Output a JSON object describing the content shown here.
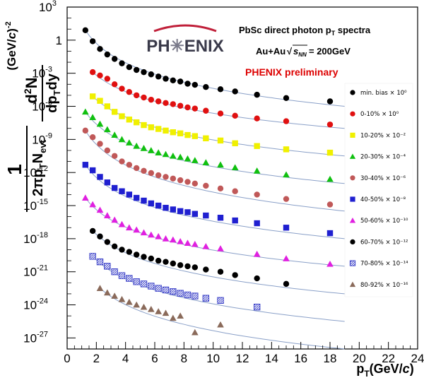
{
  "chart_data": {
    "type": "scatter",
    "title": "PbSc direct photon p_T spectra",
    "system_label": "Au+Au",
    "energy_label": "= 200GeV",
    "preliminary_label": "PHENIX preliminary",
    "logo_text": "PH✳ENIX",
    "xlabel": "p_T(GeV/c)",
    "ylabel_units": "(GeV/c)^-2",
    "xlim": [
      0,
      24
    ],
    "ylim_exponent": [
      -28,
      3
    ],
    "y_log_scale": true,
    "grid": false,
    "legend_position": "right",
    "x_ticks": [
      "0",
      "2",
      "4",
      "6",
      "8",
      "10",
      "12",
      "14",
      "16",
      "18",
      "20",
      "22",
      "24"
    ],
    "y_tick_labels": [
      {
        "exp": 3,
        "text": "10",
        "sup": "3"
      },
      {
        "exp": 0,
        "text": "1",
        "sup": ""
      },
      {
        "exp": -3,
        "text": "10",
        "sup": "-3"
      },
      {
        "exp": -6,
        "text": "10",
        "sup": "-6"
      },
      {
        "exp": -9,
        "text": "10",
        "sup": "-9"
      },
      {
        "exp": -12,
        "text": "10",
        "sup": "-12"
      },
      {
        "exp": -15,
        "text": "10",
        "sup": "-15"
      },
      {
        "exp": -18,
        "text": "10",
        "sup": "-18"
      },
      {
        "exp": -21,
        "text": "10",
        "sup": "-21"
      },
      {
        "exp": -24,
        "text": "10",
        "sup": "-24"
      },
      {
        "exp": -27,
        "text": "10",
        "sup": "-27"
      }
    ],
    "series": [
      {
        "name": "min. bias × 10⁰",
        "color": "#000000",
        "marker": "circle",
        "curve_end_log10": -6.0,
        "x": [
          1.25,
          1.75,
          2.25,
          2.75,
          3.25,
          3.75,
          4.25,
          4.75,
          5.25,
          5.75,
          6.25,
          6.75,
          7.25,
          7.75,
          8.25,
          8.75,
          9.5,
          10.5,
          11.5,
          13,
          15,
          18
        ],
        "log10y": [
          0.9,
          -0.1,
          -0.8,
          -1.3,
          -1.7,
          -2.1,
          -2.45,
          -2.7,
          -2.9,
          -3.1,
          -3.3,
          -3.5,
          -3.65,
          -3.75,
          -3.95,
          -4.05,
          -4.25,
          -4.45,
          -4.65,
          -4.95,
          -5.25,
          -5.55
        ]
      },
      {
        "name": "0-10% × 10⁰",
        "color": "#e01010",
        "marker": "circle",
        "curve_end_log10": -8.0,
        "x": [
          1.75,
          2.25,
          2.75,
          3.25,
          3.75,
          4.25,
          4.75,
          5.25,
          5.75,
          6.25,
          6.75,
          7.25,
          7.75,
          8.25,
          8.75,
          9.5,
          10.5,
          11.5,
          13,
          15,
          18
        ],
        "log10y": [
          -2.9,
          -3.2,
          -3.5,
          -4.0,
          -4.4,
          -4.7,
          -5.0,
          -5.2,
          -5.4,
          -5.55,
          -5.7,
          -5.8,
          -5.95,
          -6.1,
          -6.2,
          -6.4,
          -6.65,
          -6.85,
          -7.1,
          -7.35,
          -7.65
        ]
      },
      {
        "name": "10-20% × 10⁻²",
        "color": "#f0f000",
        "marker": "square",
        "curve_end_log10": -10.5,
        "x": [
          1.75,
          2.25,
          2.75,
          3.25,
          3.75,
          4.25,
          4.75,
          5.25,
          5.75,
          6.25,
          6.75,
          7.25,
          7.75,
          8.25,
          8.75,
          9.5,
          10.5,
          11.5,
          13,
          15,
          18
        ],
        "log10y": [
          -5.1,
          -5.5,
          -6.0,
          -6.5,
          -6.9,
          -7.2,
          -7.45,
          -7.7,
          -7.9,
          -8.05,
          -8.2,
          -8.35,
          -8.45,
          -8.6,
          -8.7,
          -8.9,
          -9.1,
          -9.35,
          -9.6,
          -9.9,
          -10.2
        ]
      },
      {
        "name": "20-30% × 10⁻⁴",
        "color": "#10c010",
        "marker": "triangle",
        "curve_end_log10": -13.0,
        "x": [
          1.25,
          1.75,
          2.25,
          2.75,
          3.25,
          3.75,
          4.25,
          4.75,
          5.25,
          5.75,
          6.25,
          6.75,
          7.25,
          7.75,
          8.25,
          8.75,
          9.5,
          10.5,
          11.5,
          13,
          15,
          18
        ],
        "log10y": [
          -6.5,
          -7.0,
          -7.6,
          -8.1,
          -8.6,
          -9.0,
          -9.3,
          -9.6,
          -9.8,
          -10.0,
          -10.2,
          -10.35,
          -10.5,
          -10.6,
          -10.75,
          -10.9,
          -11.1,
          -11.3,
          -11.55,
          -11.85,
          -12.2,
          -12.6
        ]
      },
      {
        "name": "30-40% × 10⁻⁶",
        "color": "#c05858",
        "marker": "circle",
        "curve_end_log10": -15.5,
        "x": [
          1.25,
          1.75,
          2.25,
          2.75,
          3.25,
          3.75,
          4.25,
          4.75,
          5.25,
          5.75,
          6.25,
          6.75,
          7.25,
          7.75,
          8.25,
          8.75,
          9.5,
          10.5,
          11.5,
          13,
          15,
          18
        ],
        "log10y": [
          -8.2,
          -8.8,
          -9.4,
          -10.0,
          -10.5,
          -11.0,
          -11.3,
          -11.6,
          -11.85,
          -12.05,
          -12.25,
          -12.4,
          -12.55,
          -12.7,
          -12.85,
          -13.0,
          -13.2,
          -13.45,
          -13.7,
          -14.0,
          -14.4,
          -14.9
        ]
      },
      {
        "name": "40-50% × 10⁻⁸",
        "color": "#1f1fd0",
        "marker": "square",
        "curve_end_log10": -18.0,
        "x": [
          1.25,
          1.75,
          2.25,
          2.75,
          3.25,
          3.75,
          4.25,
          4.75,
          5.25,
          5.75,
          6.25,
          6.75,
          7.25,
          7.75,
          8.25,
          8.75,
          9.5,
          10.5,
          11.5,
          13,
          15,
          18
        ],
        "log10y": [
          -11.3,
          -11.8,
          -12.4,
          -12.9,
          -13.4,
          -13.7,
          -14.0,
          -14.3,
          -14.55,
          -14.8,
          -15.0,
          -15.2,
          -15.35,
          -15.5,
          -15.6,
          -15.75,
          -15.9,
          -16.1,
          -16.35,
          -16.6,
          -17.0,
          -17.5
        ]
      },
      {
        "name": "50-60% × 10⁻¹⁰",
        "color": "#e020e0",
        "marker": "triangle",
        "curve_end_log10": -20.5,
        "x": [
          1.25,
          1.75,
          2.25,
          2.75,
          3.25,
          3.75,
          4.25,
          4.75,
          5.25,
          5.75,
          6.25,
          6.75,
          7.25,
          7.75,
          8.25,
          8.75,
          9.5,
          10.5,
          13,
          15,
          18
        ],
        "log10y": [
          -14.3,
          -14.9,
          -15.4,
          -15.9,
          -16.3,
          -16.7,
          -17.0,
          -17.2,
          -17.45,
          -17.65,
          -17.8,
          -18.0,
          -18.1,
          -18.25,
          -18.4,
          -18.5,
          -18.7,
          -18.9,
          -19.4,
          -19.8,
          -20.3
        ]
      },
      {
        "name": "60-70% × 10⁻¹²",
        "color": "#000000",
        "marker": "circle",
        "curve_end_log10": -23.0,
        "x": [
          1.75,
          2.25,
          2.75,
          3.25,
          3.75,
          4.25,
          4.75,
          5.25,
          5.75,
          6.25,
          6.75,
          7.25,
          7.75,
          8.25,
          8.75,
          9.5,
          10.5,
          11.5,
          13,
          15
        ],
        "log10y": [
          -17.3,
          -17.8,
          -18.3,
          -18.7,
          -19.0,
          -19.2,
          -19.45,
          -19.65,
          -19.8,
          -20.0,
          -20.1,
          -20.25,
          -20.4,
          -20.5,
          -20.6,
          -20.8,
          -21.0,
          -21.3,
          -21.6,
          -22.1
        ]
      },
      {
        "name": "70-80% × 10⁻¹⁴",
        "color": "#3a40c8",
        "marker": "hatched-square",
        "curve_end_log10": -25.5,
        "x": [
          1.75,
          2.25,
          2.75,
          3.25,
          3.75,
          4.25,
          4.75,
          5.25,
          5.75,
          6.25,
          6.75,
          7.25,
          7.75,
          8.25,
          8.75,
          9.5,
          10.5,
          13
        ],
        "log10y": [
          -19.6,
          -20.1,
          -20.5,
          -21.0,
          -21.35,
          -21.6,
          -21.9,
          -22.1,
          -22.3,
          -22.5,
          -22.65,
          -22.8,
          -22.95,
          -23.1,
          -23.2,
          -23.4,
          -23.6,
          -24.2
        ]
      },
      {
        "name": "80-92% × 10⁻¹⁶",
        "color": "#8a6a5a",
        "marker": "triangle",
        "curve_end_log10": -28.0,
        "x": [
          2.25,
          2.75,
          3.25,
          3.75,
          4.25,
          4.75,
          5.25,
          5.75,
          6.25,
          6.75,
          7.25,
          7.75,
          8.75,
          10.5
        ],
        "log10y": [
          -22.5,
          -22.9,
          -23.2,
          -23.5,
          -23.75,
          -24.0,
          -24.2,
          -24.4,
          -24.6,
          -24.75,
          -25.2,
          -25.0,
          -26.5,
          -25.8
        ]
      }
    ]
  }
}
